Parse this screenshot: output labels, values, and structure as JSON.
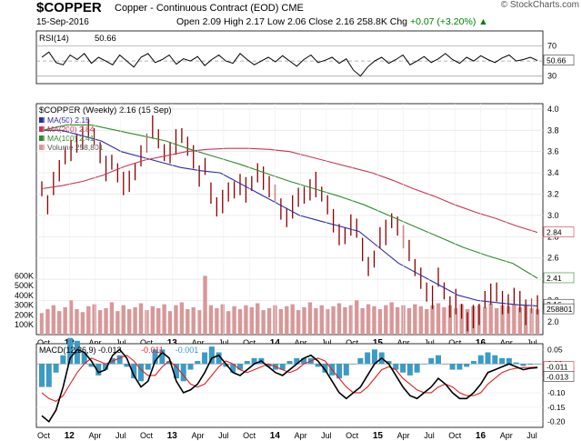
{
  "header": {
    "symbol": "$COPPER",
    "name": "Copper - Continuous Contract (EOD)",
    "exchange": "CME",
    "date": "15-Sep-2016",
    "open_label": "Open",
    "open": "2.09",
    "high_label": "High",
    "high": "2.17",
    "low_label": "Low",
    "low": "2.06",
    "close_label": "Close",
    "close": "2.16",
    "volume": "258.8K",
    "chg_label": "Chg",
    "chg": "+0.07 (+3.20%)",
    "chg_arrow": "▲",
    "brand": "© StockCharts.com"
  },
  "colors": {
    "up": "#008000",
    "price_bar": "#8b0000",
    "ma50": "#2b2b9e",
    "ma200": "#cc3355",
    "ma100": "#2e8b2e",
    "volume": "#d89898",
    "macd": "#000000",
    "signal": "#e02020",
    "hist": "#3b9bc6"
  },
  "chart_data": [
    {
      "type": "line",
      "panel": "RSI",
      "series": [
        {
          "name": "RSI(14) 50.66",
          "last": 50.66,
          "values": [
            55,
            62,
            48,
            45,
            58,
            52,
            60,
            47,
            55,
            50,
            45,
            58,
            50,
            42,
            55,
            60,
            48,
            52,
            58,
            46,
            53,
            50,
            56,
            44,
            52,
            58,
            50,
            47,
            60,
            52,
            45,
            50,
            55,
            49,
            57,
            50,
            43,
            52,
            58,
            48,
            51,
            55,
            47,
            53,
            38,
            30,
            42,
            50,
            55,
            47,
            52,
            58,
            45,
            50,
            56,
            48,
            53,
            60,
            52,
            47,
            55,
            50,
            57,
            52,
            48,
            54,
            58,
            50,
            52,
            55,
            50.66
          ]
        }
      ],
      "y_ticks": [
        30,
        50,
        70
      ],
      "reference_lines": [
        30,
        70
      ],
      "last_label": "50.66"
    },
    {
      "type": "line",
      "panel": "Price",
      "title": "$COPPER (Weekly) 2.16 (15 Sep)",
      "legend": [
        {
          "name": "MA(50) 2.15",
          "color": "#2b2b9e"
        },
        {
          "name": "MA(200) 2.84",
          "color": "#cc3355"
        },
        {
          "name": "MA(100) 2.41",
          "color": "#2e8b2e"
        },
        {
          "name": "Volume 258,801",
          "color": "#d89898"
        }
      ],
      "x_ticks": [
        "Oct",
        "12",
        "Apr",
        "Jul",
        "Oct",
        "13",
        "Apr",
        "Jul",
        "Oct",
        "14",
        "Apr",
        "Jul",
        "Oct",
        "15",
        "Apr",
        "Jul",
        "Oct",
        "16",
        "Apr",
        "Jul"
      ],
      "y_ticks": [
        2.0,
        2.2,
        2.4,
        2.6,
        2.8,
        3.0,
        3.2,
        3.4,
        3.6,
        3.8,
        4.0
      ],
      "y_range": [
        1.88,
        4.05
      ],
      "series": [
        {
          "name": "Price",
          "values": [
            3.25,
            3.1,
            3.3,
            3.45,
            3.55,
            3.6,
            3.7,
            3.75,
            3.8,
            3.75,
            3.6,
            3.45,
            3.5,
            3.4,
            3.3,
            3.35,
            3.4,
            3.55,
            3.7,
            3.85,
            3.7,
            3.6,
            3.6,
            3.7,
            3.75,
            3.65,
            3.55,
            3.4,
            3.45,
            3.2,
            3.1,
            3.15,
            3.2,
            3.25,
            3.3,
            3.25,
            3.3,
            3.4,
            3.35,
            3.3,
            3.2,
            3.05,
            3.0,
            3.1,
            3.15,
            3.2,
            3.25,
            3.3,
            3.2,
            3.1,
            2.95,
            2.85,
            2.8,
            2.9,
            2.9,
            2.7,
            2.5,
            2.6,
            2.8,
            2.85,
            2.95,
            2.9,
            2.8,
            2.7,
            2.5,
            2.4,
            2.3,
            2.25,
            2.4,
            2.3,
            2.15,
            2.2,
            2.1,
            2.0,
            2.05,
            2.1,
            2.2,
            2.25,
            2.3,
            2.2,
            2.15,
            2.25,
            2.2,
            2.1,
            2.15,
            2.16
          ]
        },
        {
          "name": "MA(50) 2.15",
          "values": [
            3.8,
            3.8,
            3.75,
            3.7,
            3.6,
            3.55,
            3.5,
            3.45,
            3.42,
            3.4,
            3.3,
            3.2,
            3.1,
            3.0,
            2.95,
            2.9,
            2.85,
            2.7,
            2.55,
            2.45,
            2.35,
            2.25,
            2.2,
            2.18,
            2.16,
            2.15
          ]
        },
        {
          "name": "MA(200) 2.84",
          "values": [
            3.25,
            3.28,
            3.32,
            3.38,
            3.46,
            3.52,
            3.56,
            3.6,
            3.62,
            3.63,
            3.63,
            3.62,
            3.6,
            3.55,
            3.5,
            3.45,
            3.4,
            3.33,
            3.25,
            3.18,
            3.1,
            3.03,
            2.97,
            2.9,
            2.84
          ]
        },
        {
          "name": "MA(100) 2.41",
          "values": [
            3.8,
            3.85,
            3.85,
            3.8,
            3.75,
            3.7,
            3.62,
            3.55,
            3.48,
            3.4,
            3.32,
            3.25,
            3.18,
            3.1,
            3.0,
            2.9,
            2.8,
            2.7,
            2.62,
            2.55,
            2.41
          ]
        }
      ],
      "last_labels": [
        "2.84",
        "2.41",
        "2.16"
      ]
    },
    {
      "type": "bar",
      "panel": "Volume",
      "y_ticks": [
        "100K",
        "200K",
        "300K",
        "400K",
        "500K",
        "600K"
      ],
      "last_label": "258801",
      "values": [
        220000,
        260000,
        300000,
        240000,
        280000,
        350000,
        260000,
        230000,
        290000,
        310000,
        250000,
        270000,
        330000,
        240000,
        300000,
        260000,
        280000,
        320000,
        250000,
        290000,
        270000,
        310000,
        240000,
        300000,
        330000,
        260000,
        280000,
        250000,
        600000,
        300000,
        270000,
        310000,
        240000,
        290000,
        260000,
        300000,
        280000,
        320000,
        250000,
        270000,
        300000,
        260000,
        290000,
        310000,
        250000,
        280000,
        330000,
        270000,
        300000,
        260000,
        290000,
        320000,
        280000,
        300000,
        350000,
        270000,
        310000,
        290000,
        260000,
        300000,
        330000,
        280000,
        300000,
        270000,
        310000,
        290000,
        260000,
        300000,
        320000,
        280000,
        300000,
        270000,
        310000,
        260000,
        290000,
        300000,
        280000,
        320000,
        270000,
        300000,
        290000,
        310000,
        280000,
        300000,
        270000,
        258801
      ]
    },
    {
      "type": "line",
      "panel": "MACD",
      "legend": [
        {
          "name": "MACD(12,26,9) -0.013",
          "color": "#000000"
        },
        {
          "name": "-0.011",
          "color": "#e02020"
        },
        {
          "name": "-0.001",
          "color": "#3b9bc6"
        }
      ],
      "y_ticks": [
        -0.2,
        -0.15,
        -0.1,
        -0.05,
        0.0,
        0.05
      ],
      "y_range": [
        -0.22,
        0.07
      ],
      "last_labels": [
        "-0.011",
        "-0.013"
      ],
      "series": [
        {
          "name": "MACD(12,26,9) -0.013",
          "values": [
            -0.18,
            -0.2,
            -0.16,
            -0.08,
            0.02,
            0.05,
            0.04,
            0.01,
            -0.03,
            -0.02,
            0.03,
            0.05,
            0.02,
            -0.04,
            -0.08,
            -0.06,
            0.01,
            0.04,
            0.02,
            -0.06,
            -0.1,
            -0.09,
            -0.07,
            -0.03,
            0.02,
            0.03,
            0.0,
            -0.03,
            -0.04,
            -0.02,
            0.0,
            0.01,
            -0.01,
            -0.03,
            -0.04,
            -0.02,
            0.0,
            0.02,
            0.03,
            0.01,
            -0.02,
            -0.06,
            -0.1,
            -0.12,
            -0.1,
            -0.08,
            -0.04,
            0.0,
            0.02,
            0.0,
            -0.04,
            -0.08,
            -0.11,
            -0.12,
            -0.1,
            -0.08,
            -0.05,
            -0.07,
            -0.1,
            -0.12,
            -0.12,
            -0.1,
            -0.07,
            -0.03,
            -0.02,
            -0.01,
            0.0,
            -0.01,
            -0.02,
            -0.015,
            -0.013
          ]
        },
        {
          "name": "-0.011",
          "values": [
            -0.1,
            -0.12,
            -0.13,
            -0.11,
            -0.07,
            -0.03,
            0.0,
            0.02,
            0.01,
            0.0,
            0.01,
            0.02,
            0.03,
            0.01,
            -0.02,
            -0.04,
            -0.04,
            -0.01,
            0.01,
            -0.01,
            -0.04,
            -0.07,
            -0.08,
            -0.07,
            -0.04,
            -0.01,
            0.01,
            0.0,
            -0.02,
            -0.03,
            -0.02,
            -0.01,
            0.0,
            -0.01,
            -0.02,
            -0.03,
            -0.02,
            0.0,
            0.01,
            0.02,
            0.01,
            -0.02,
            -0.05,
            -0.08,
            -0.1,
            -0.1,
            -0.08,
            -0.05,
            -0.02,
            -0.01,
            -0.02,
            -0.05,
            -0.07,
            -0.09,
            -0.1,
            -0.1,
            -0.08,
            -0.07,
            -0.08,
            -0.1,
            -0.11,
            -0.11,
            -0.1,
            -0.07,
            -0.05,
            -0.03,
            -0.02,
            -0.015,
            -0.013,
            -0.012,
            -0.011
          ]
        },
        {
          "name": "-0.001",
          "values": [
            -0.08,
            -0.08,
            -0.03,
            0.03,
            0.09,
            0.08,
            0.04,
            -0.01,
            -0.04,
            -0.02,
            0.02,
            0.03,
            -0.01,
            -0.05,
            -0.06,
            -0.02,
            0.05,
            0.05,
            0.01,
            -0.05,
            -0.06,
            -0.02,
            0.01,
            0.04,
            0.06,
            0.04,
            -0.01,
            -0.03,
            -0.02,
            0.01,
            0.02,
            0.02,
            -0.01,
            -0.02,
            -0.02,
            0.01,
            0.02,
            0.02,
            0.02,
            -0.01,
            -0.03,
            -0.04,
            -0.05,
            -0.04,
            0.0,
            0.02,
            0.04,
            0.05,
            0.04,
            0.01,
            -0.02,
            -0.03,
            -0.04,
            -0.03,
            0.0,
            0.02,
            0.03,
            0.0,
            -0.02,
            -0.02,
            -0.01,
            0.01,
            0.03,
            0.04,
            0.03,
            0.02,
            0.02,
            0.005,
            -0.007,
            -0.003,
            -0.001
          ]
        }
      ]
    }
  ]
}
